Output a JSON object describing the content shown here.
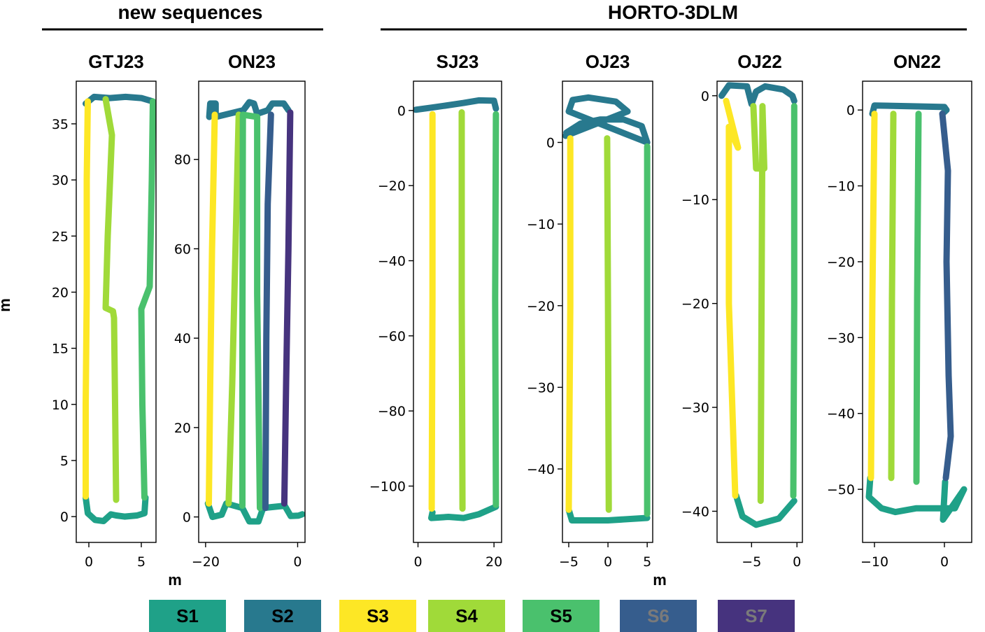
{
  "group_headers": [
    "new sequences",
    "HORTO-3DLM"
  ],
  "shared_xlabel": "m",
  "shared_ylabel": "m",
  "legend": [
    {
      "label": "S1",
      "color": "#1fa188",
      "text_color": "#000000"
    },
    {
      "label": "S2",
      "color": "#28798e",
      "text_color": "#000000"
    },
    {
      "label": "S3",
      "color": "#fde725",
      "text_color": "#000000"
    },
    {
      "label": "S4",
      "color": "#a0da39",
      "text_color": "#000000"
    },
    {
      "label": "S5",
      "color": "#4ac16d",
      "text_color": "#000000"
    },
    {
      "label": "S6",
      "color": "#365d8d",
      "text_color": "#7a7a7a"
    },
    {
      "label": "S7",
      "color": "#46337e",
      "text_color": "#7a7a7a"
    }
  ],
  "chart_data": [
    {
      "type": "line",
      "title": "GTJ23",
      "xlabel": "",
      "ylabel": "",
      "xlim": [
        -1.2,
        6.4
      ],
      "ylim": [
        -2.3,
        38.8
      ],
      "xticks": [
        0,
        5
      ],
      "yticks": [
        0,
        5,
        10,
        15,
        20,
        25,
        30,
        35
      ],
      "grid": false,
      "series": [
        {
          "name": "S1",
          "points": [
            [
              -0.3,
              1.7
            ],
            [
              -0.1,
              0.3
            ],
            [
              0.6,
              -0.3
            ],
            [
              1.4,
              -0.4
            ],
            [
              2.1,
              0.2
            ],
            [
              2.6,
              0.1
            ],
            [
              3.4,
              0.0
            ],
            [
              4.6,
              0.1
            ],
            [
              5.3,
              0.3
            ],
            [
              5.4,
              1.7
            ]
          ]
        },
        {
          "name": "S2",
          "points": [
            [
              -0.3,
              36.8
            ],
            [
              0.5,
              37.4
            ],
            [
              2.0,
              37.3
            ],
            [
              3.5,
              37.4
            ],
            [
              5.0,
              37.3
            ],
            [
              6.1,
              37.0
            ]
          ]
        },
        {
          "name": "S3",
          "points": [
            [
              -0.3,
              1.8
            ],
            [
              -0.3,
              10.0
            ],
            [
              -0.2,
              20.0
            ],
            [
              -0.2,
              30.0
            ],
            [
              -0.1,
              37.0
            ]
          ]
        },
        {
          "name": "S4",
          "points": [
            [
              2.6,
              1.5
            ],
            [
              2.5,
              10.0
            ],
            [
              2.4,
              17.7
            ],
            [
              2.3,
              18.3
            ],
            [
              1.6,
              18.6
            ],
            [
              1.8,
              25.0
            ],
            [
              2.2,
              34.0
            ],
            [
              1.6,
              37.2
            ]
          ]
        },
        {
          "name": "S5",
          "points": [
            [
              5.3,
              1.7
            ],
            [
              5.1,
              10.0
            ],
            [
              5.0,
              18.5
            ],
            [
              5.8,
              20.5
            ],
            [
              6.0,
              30.0
            ],
            [
              6.1,
              37.0
            ]
          ]
        }
      ]
    },
    {
      "type": "line",
      "title": "ON23",
      "xlabel": "",
      "ylabel": "",
      "xlim": [
        -21.5,
        1.6
      ],
      "ylim": [
        -5.7,
        97.5
      ],
      "xticks": [
        -20,
        0
      ],
      "yticks": [
        0,
        20,
        40,
        60,
        80
      ],
      "grid": false,
      "series": [
        {
          "name": "S1",
          "points": [
            [
              -19.5,
              3.0
            ],
            [
              -18.5,
              0.0
            ],
            [
              -16.5,
              0.5
            ],
            [
              -15.5,
              3.0
            ],
            [
              -12.0,
              2.0
            ],
            [
              -10.5,
              -1.0
            ],
            [
              -8.5,
              -1.0
            ],
            [
              -7.5,
              2.0
            ],
            [
              -2.8,
              2.5
            ],
            [
              -1.5,
              0.2
            ],
            [
              0.2,
              0.3
            ],
            [
              1.0,
              0.6
            ]
          ]
        },
        {
          "name": "S2",
          "points": [
            [
              -19.2,
              89.5
            ],
            [
              -19.0,
              92.5
            ],
            [
              -17.8,
              92.5
            ],
            [
              -17.8,
              89.5
            ],
            [
              -11.8,
              91.0
            ],
            [
              -10.5,
              92.8
            ],
            [
              -9.5,
              92.5
            ],
            [
              -8.8,
              90.2
            ],
            [
              -6.5,
              91.0
            ],
            [
              -5.5,
              92.5
            ],
            [
              -3.0,
              92.5
            ],
            [
              -2.0,
              91.0
            ]
          ]
        },
        {
          "name": "S3",
          "points": [
            [
              -19.3,
              3.0
            ],
            [
              -19.0,
              30.0
            ],
            [
              -18.6,
              60.0
            ],
            [
              -18.0,
              90.0
            ]
          ]
        },
        {
          "name": "S4",
          "points": [
            [
              -15.0,
              3.0
            ],
            [
              -14.2,
              30.0
            ],
            [
              -13.5,
              60.0
            ],
            [
              -12.8,
              90.0
            ]
          ]
        },
        {
          "name": "S5",
          "points": [
            [
              -12.0,
              2.5
            ],
            [
              -12.0,
              40.0
            ],
            [
              -11.9,
              90.0
            ],
            [
              -8.8,
              89.5
            ],
            [
              -8.8,
              50.0
            ],
            [
              -8.2,
              2.0
            ]
          ]
        },
        {
          "name": "S6",
          "points": [
            [
              -7.0,
              2.0
            ],
            [
              -6.8,
              40.0
            ],
            [
              -6.5,
              70.0
            ],
            [
              -5.8,
              90.0
            ]
          ]
        },
        {
          "name": "S7",
          "points": [
            [
              -2.9,
              3.0
            ],
            [
              -2.5,
              30.0
            ],
            [
              -2.0,
              60.0
            ],
            [
              -1.6,
              90.5
            ]
          ]
        }
      ]
    },
    {
      "type": "line",
      "title": "SJ23",
      "xlabel": "",
      "ylabel": "",
      "xlim": [
        -1.2,
        22.0
      ],
      "ylim": [
        -115.0,
        7.8
      ],
      "xticks": [
        0,
        20
      ],
      "yticks": [
        -100,
        -80,
        -60,
        -40,
        -20,
        0
      ],
      "grid": false,
      "series": [
        {
          "name": "S1",
          "points": [
            [
              3.8,
              -107.0
            ],
            [
              3.5,
              -108.5
            ],
            [
              8.0,
              -108.2
            ],
            [
              12.0,
              -108.5
            ],
            [
              16.0,
              -107.5
            ],
            [
              20.5,
              -105.5
            ]
          ]
        },
        {
          "name": "S2",
          "points": [
            [
              -0.6,
              0.2
            ],
            [
              3.8,
              0.8
            ],
            [
              12.0,
              2.0
            ],
            [
              16.0,
              2.7
            ],
            [
              20.0,
              2.6
            ],
            [
              20.5,
              0.5
            ]
          ]
        },
        {
          "name": "S3",
          "points": [
            [
              3.8,
              -1.0
            ],
            [
              3.8,
              -50.0
            ],
            [
              3.6,
              -106.0
            ]
          ]
        },
        {
          "name": "S4",
          "points": [
            [
              11.5,
              -0.5
            ],
            [
              11.5,
              -50.0
            ],
            [
              11.7,
              -106.0
            ]
          ]
        },
        {
          "name": "S5",
          "points": [
            [
              20.5,
              -1.0
            ],
            [
              20.3,
              -50.0
            ],
            [
              20.5,
              -105.0
            ]
          ]
        }
      ]
    },
    {
      "type": "line",
      "title": "OJ23",
      "xlabel": "",
      "ylabel": "",
      "xlim": [
        -5.8,
        5.7
      ],
      "ylim": [
        -49.0,
        7.5
      ],
      "xticks": [
        -5,
        0,
        5
      ],
      "yticks": [
        -40,
        -30,
        -20,
        -10,
        0
      ],
      "grid": false,
      "series": [
        {
          "name": "S1",
          "points": [
            [
              -5.0,
              -45.0
            ],
            [
              -4.6,
              -46.3
            ],
            [
              0.0,
              -46.3
            ],
            [
              5.0,
              -46.0
            ]
          ]
        },
        {
          "name": "S2",
          "points": [
            [
              -5.3,
              1.2
            ],
            [
              -3.5,
              2.3
            ],
            [
              -1.0,
              2.8
            ],
            [
              2.0,
              2.8
            ],
            [
              4.3,
              2.0
            ],
            [
              5.0,
              0.0
            ],
            [
              -5.0,
              3.8
            ],
            [
              -4.5,
              5.2
            ],
            [
              -2.5,
              5.5
            ],
            [
              1.0,
              5.0
            ],
            [
              2.5,
              3.8
            ],
            [
              -5.4,
              0.8
            ]
          ]
        },
        {
          "name": "S3",
          "points": [
            [
              -4.8,
              0.5
            ],
            [
              -4.8,
              -20.0
            ],
            [
              -5.0,
              -45.0
            ]
          ]
        },
        {
          "name": "S4",
          "points": [
            [
              -0.1,
              0.5
            ],
            [
              0.0,
              -20.0
            ],
            [
              0.1,
              -45.0
            ]
          ]
        },
        {
          "name": "S5",
          "points": [
            [
              5.0,
              -0.5
            ],
            [
              5.0,
              -25.0
            ],
            [
              5.0,
              -45.5
            ]
          ]
        }
      ]
    },
    {
      "type": "line",
      "title": "OJ22",
      "xlabel": "",
      "ylabel": "",
      "xlim": [
        -8.8,
        0.6
      ],
      "ylim": [
        -43.0,
        1.4
      ],
      "xticks": [
        -5,
        0
      ],
      "yticks": [
        -40,
        -30,
        -20,
        -10,
        0
      ],
      "grid": false,
      "series": [
        {
          "name": "S1",
          "points": [
            [
              -6.7,
              -38.5
            ],
            [
              -6.0,
              -40.5
            ],
            [
              -4.5,
              -41.3
            ],
            [
              -2.0,
              -40.7
            ],
            [
              -0.3,
              -39.0
            ]
          ]
        },
        {
          "name": "S2",
          "points": [
            [
              -8.3,
              0.0
            ],
            [
              -7.5,
              1.0
            ],
            [
              -5.5,
              0.9
            ],
            [
              -5.0,
              -0.8
            ],
            [
              -4.5,
              0.4
            ],
            [
              -3.5,
              0.9
            ],
            [
              -1.5,
              0.6
            ],
            [
              -0.5,
              0.0
            ],
            [
              -0.3,
              -0.5
            ]
          ]
        },
        {
          "name": "S3",
          "points": [
            [
              -7.8,
              -0.5
            ],
            [
              -6.5,
              -5.0
            ],
            [
              -7.5,
              -3.0
            ],
            [
              -7.5,
              -20.0
            ],
            [
              -6.8,
              -38.5
            ]
          ]
        },
        {
          "name": "S4",
          "points": [
            [
              -4.8,
              -1.0
            ],
            [
              -4.5,
              -7.0
            ],
            [
              -3.6,
              -7.0
            ],
            [
              -3.8,
              -1.0
            ],
            [
              -3.9,
              -20.0
            ],
            [
              -4.0,
              -39.0
            ]
          ]
        },
        {
          "name": "S5",
          "points": [
            [
              -0.3,
              -1.0
            ],
            [
              -0.3,
              -20.0
            ],
            [
              -0.4,
              -38.5
            ]
          ]
        }
      ]
    },
    {
      "type": "line",
      "title": "ON22",
      "xlabel": "",
      "ylabel": "",
      "xlim": [
        -11.7,
        3.9
      ],
      "ylim": [
        -57.0,
        3.8
      ],
      "xticks": [
        -10,
        0
      ],
      "yticks": [
        -50,
        -40,
        -30,
        -20,
        -10,
        0
      ],
      "grid": false,
      "series": [
        {
          "name": "S1",
          "points": [
            [
              -10.6,
              -48.5
            ],
            [
              -10.8,
              -51.0
            ],
            [
              -9.0,
              -52.5
            ],
            [
              -7.0,
              -53.0
            ],
            [
              -4.0,
              -52.5
            ],
            [
              -1.0,
              -52.5
            ],
            [
              1.5,
              -52.5
            ],
            [
              2.8,
              -50.0
            ],
            [
              -0.2,
              -54.0
            ],
            [
              0.1,
              -49.0
            ]
          ]
        },
        {
          "name": "S2",
          "points": [
            [
              -10.3,
              -0.5
            ],
            [
              -10.0,
              0.6
            ],
            [
              -5.0,
              0.5
            ],
            [
              0.0,
              0.4
            ],
            [
              0.3,
              0.0
            ],
            [
              -0.3,
              -0.5
            ]
          ]
        },
        {
          "name": "S3",
          "points": [
            [
              -10.0,
              -0.5
            ],
            [
              -10.3,
              -25.0
            ],
            [
              -10.5,
              -48.5
            ]
          ]
        },
        {
          "name": "S4",
          "points": [
            [
              -7.3,
              -0.5
            ],
            [
              -7.5,
              -25.0
            ],
            [
              -7.6,
              -48.5
            ]
          ]
        },
        {
          "name": "S5",
          "points": [
            [
              -3.7,
              -0.5
            ],
            [
              -3.9,
              -25.0
            ],
            [
              -4.0,
              -49.0
            ]
          ]
        },
        {
          "name": "S6",
          "points": [
            [
              -0.3,
              -0.5
            ],
            [
              0.5,
              -8.0
            ],
            [
              0.3,
              -20.0
            ],
            [
              0.6,
              -35.0
            ],
            [
              0.9,
              -43.0
            ],
            [
              0.2,
              -48.5
            ]
          ]
        }
      ]
    }
  ]
}
